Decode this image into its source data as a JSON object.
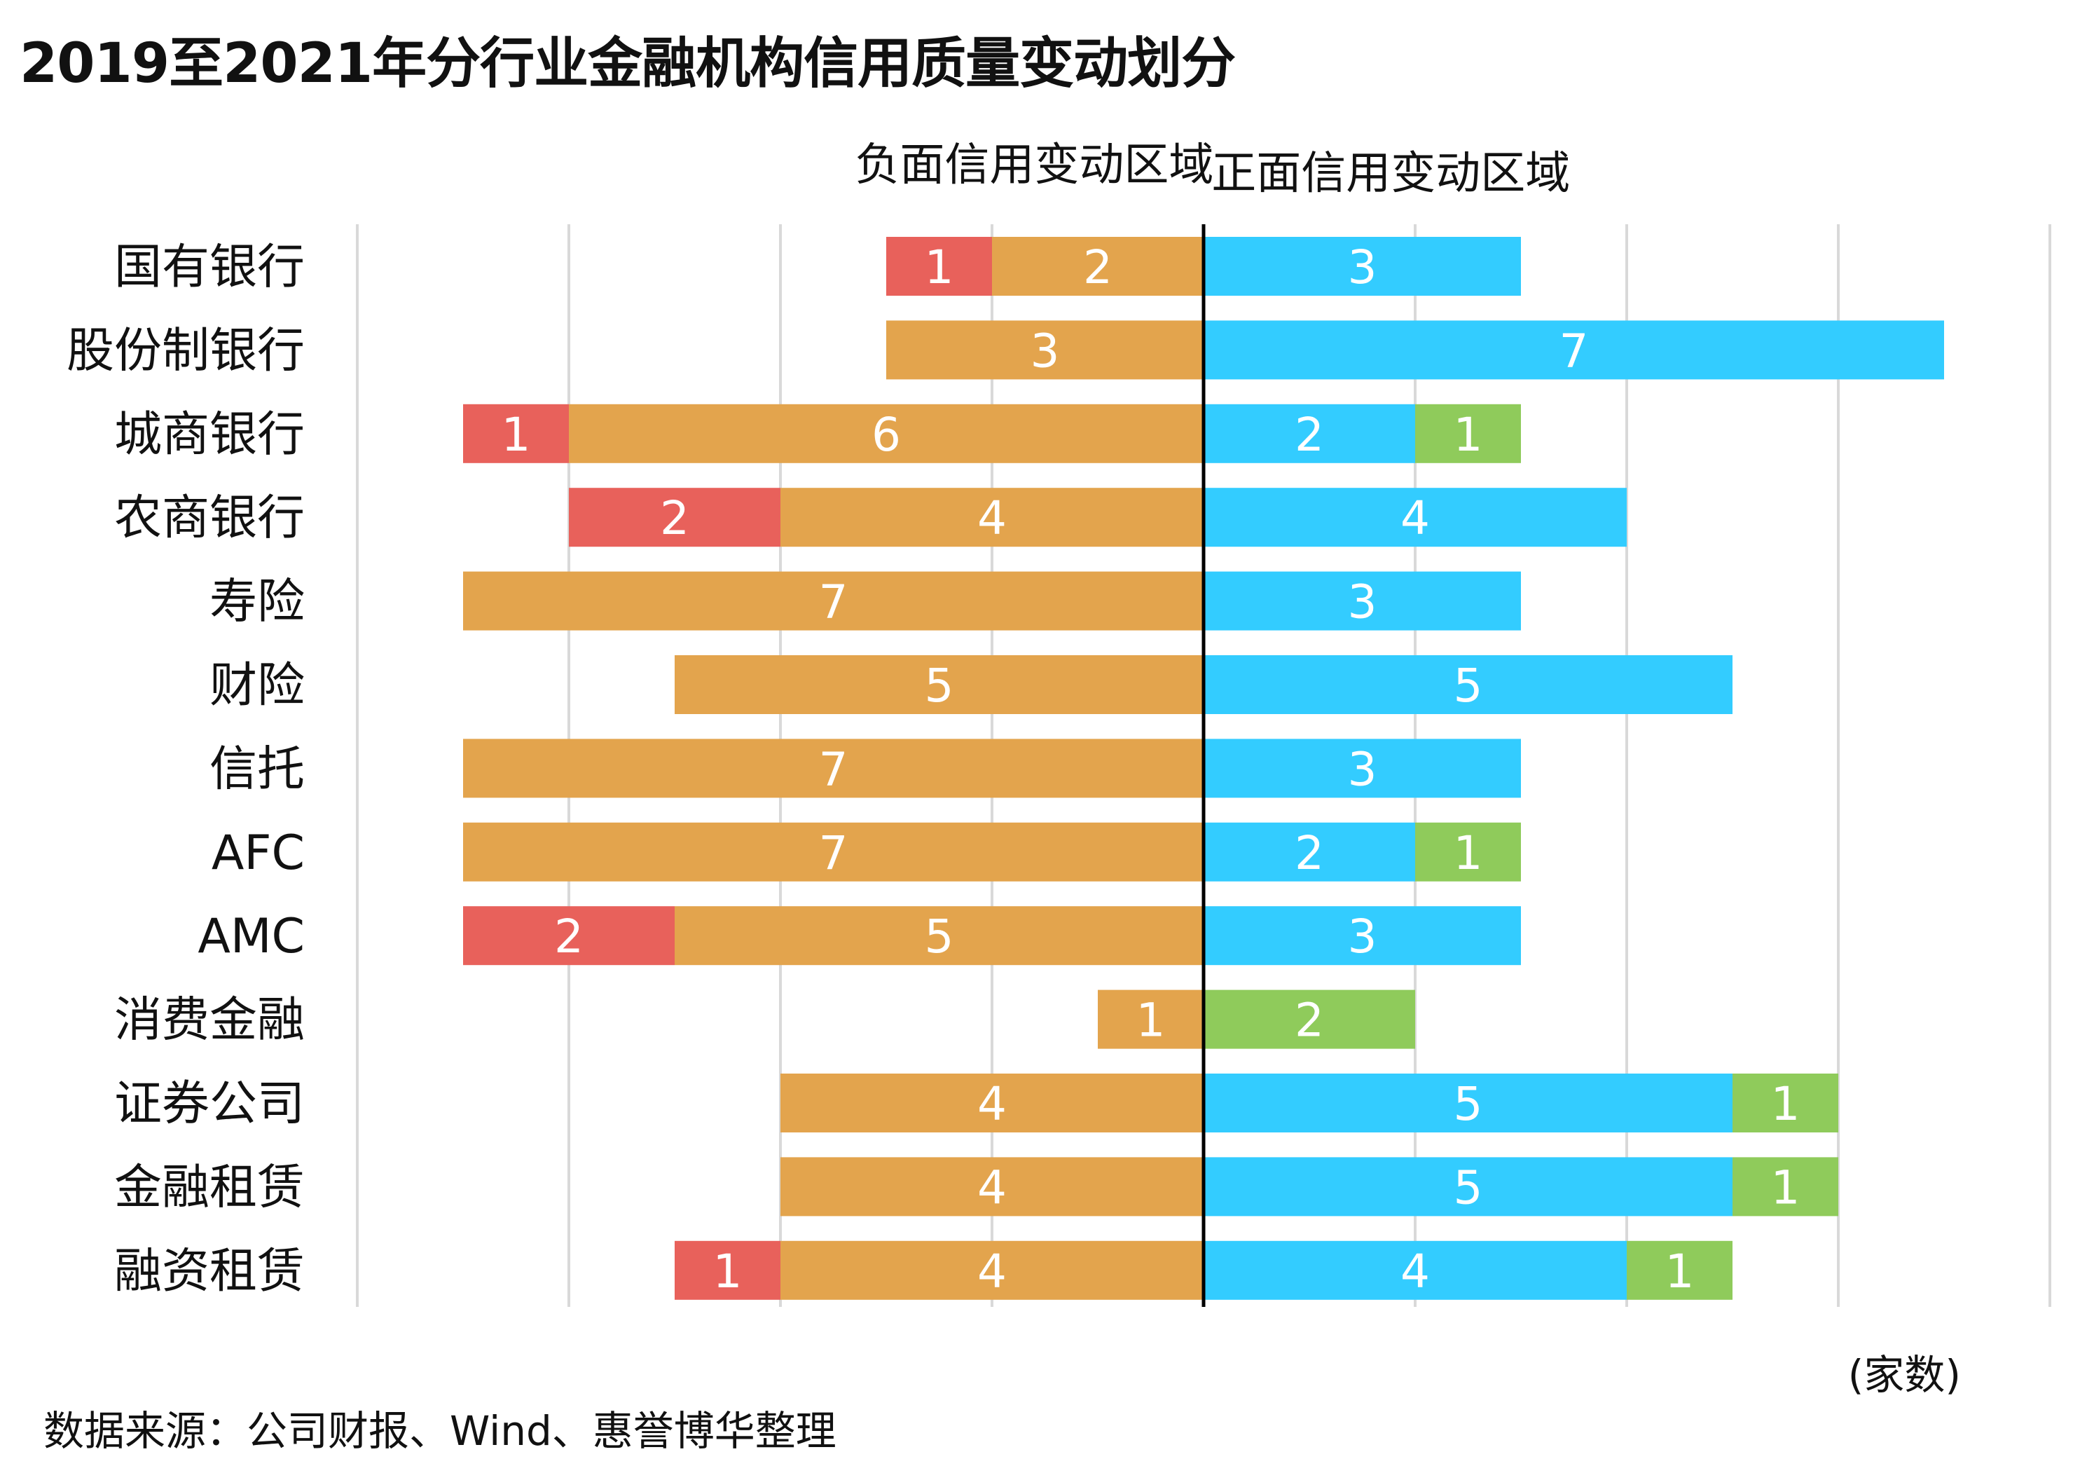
{
  "title": "2019至2021年分行业金融机构信用质量变动划分",
  "zones": {
    "negative": "负面信用变动区域",
    "positive": "正面信用变动区域"
  },
  "unit": "(家数)",
  "source": "数据来源：公司财报、Wind、惠誉博华整理",
  "colors": {
    "neg_strong": "#E8615B",
    "neg": "#E3A44D",
    "pos": "#33CCFF",
    "pos_strong": "#8FCB5B",
    "grid": "#d9d9d9",
    "axis": "#000000"
  },
  "chart_data": {
    "type": "bar",
    "orientation": "horizontal-diverging",
    "categories": [
      "国有银行",
      "股份制银行",
      "城商银行",
      "农商银行",
      "寿险",
      "财险",
      "信托",
      "AFC",
      "AMC",
      "消费金融",
      "证券公司",
      "金融租赁",
      "融资租赁"
    ],
    "series": [
      {
        "key": "neg_strong",
        "side": "negative",
        "values": [
          1,
          0,
          1,
          2,
          0,
          0,
          0,
          0,
          2,
          0,
          0,
          0,
          1
        ]
      },
      {
        "key": "neg",
        "side": "negative",
        "values": [
          2,
          3,
          6,
          4,
          7,
          5,
          7,
          7,
          5,
          1,
          4,
          4,
          4
        ]
      },
      {
        "key": "pos",
        "side": "positive",
        "values": [
          3,
          7,
          2,
          4,
          3,
          5,
          3,
          2,
          3,
          0,
          5,
          5,
          4
        ]
      },
      {
        "key": "pos_strong",
        "side": "positive",
        "values": [
          0,
          0,
          1,
          0,
          0,
          0,
          0,
          1,
          0,
          2,
          1,
          1,
          1
        ]
      }
    ],
    "xlim": [
      -8,
      8
    ],
    "grid": true
  }
}
